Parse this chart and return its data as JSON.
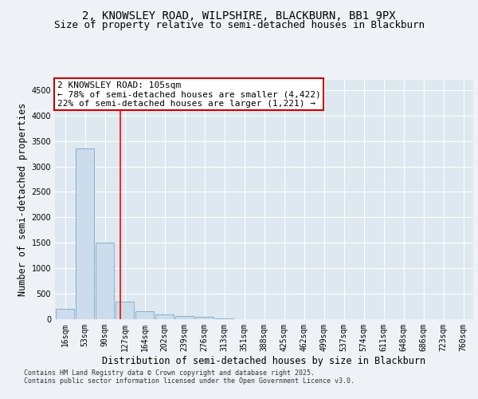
{
  "title": "2, KNOWSLEY ROAD, WILPSHIRE, BLACKBURN, BB1 9PX",
  "subtitle": "Size of property relative to semi-detached houses in Blackburn",
  "xlabel": "Distribution of semi-detached houses by size in Blackburn",
  "ylabel": "Number of semi-detached properties",
  "categories": [
    "16sqm",
    "53sqm",
    "90sqm",
    "127sqm",
    "164sqm",
    "202sqm",
    "239sqm",
    "276sqm",
    "313sqm",
    "351sqm",
    "388sqm",
    "425sqm",
    "462sqm",
    "499sqm",
    "537sqm",
    "574sqm",
    "611sqm",
    "648sqm",
    "686sqm",
    "723sqm",
    "760sqm"
  ],
  "values": [
    200,
    3350,
    1500,
    350,
    150,
    90,
    60,
    40,
    20,
    5,
    0,
    0,
    0,
    0,
    0,
    0,
    0,
    0,
    0,
    0,
    0
  ],
  "bar_color": "#ccdcec",
  "bar_edge_color": "#7aaac8",
  "red_line_x": 2.78,
  "annotation_line1": "2 KNOWSLEY ROAD: 105sqm",
  "annotation_line2": "← 78% of semi-detached houses are smaller (4,422)",
  "annotation_line3": "22% of semi-detached houses are larger (1,221) →",
  "annotation_box_color": "#ffffff",
  "annotation_box_edge_color": "#cc0000",
  "ylim": [
    0,
    4700
  ],
  "yticks": [
    0,
    500,
    1000,
    1500,
    2000,
    2500,
    3000,
    3500,
    4000,
    4500
  ],
  "footer_line1": "Contains HM Land Registry data © Crown copyright and database right 2025.",
  "footer_line2": "Contains public sector information licensed under the Open Government Licence v3.0.",
  "background_color": "#eef2f7",
  "plot_bg_color": "#dde8f0",
  "grid_color": "#ffffff",
  "title_fontsize": 10,
  "subtitle_fontsize": 9,
  "tick_fontsize": 7,
  "label_fontsize": 8.5,
  "annotation_fontsize": 8,
  "footer_fontsize": 6
}
